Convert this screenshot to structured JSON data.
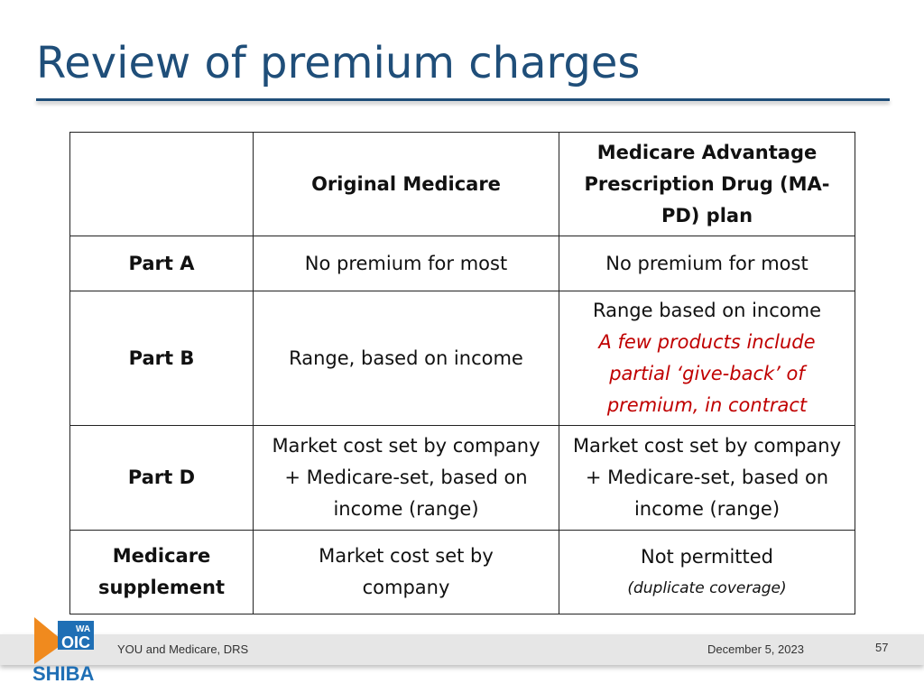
{
  "slide": {
    "title": "Review of premium charges"
  },
  "table": {
    "headers": [
      "",
      "Original Medicare",
      "Medicare Advantage Prescription Drug (MA-PD) plan"
    ],
    "rows": [
      {
        "label": "Part A",
        "original": "No premium for most",
        "mapd": "No premium for most"
      },
      {
        "label": "Part B",
        "original": "Range, based on income",
        "mapd": "Range based on income",
        "mapd_note": "A few products include partial ‘give-back’ of premium, in contract"
      },
      {
        "label": "Part D",
        "original": "Market cost set by company + Medicare-set, based on income (range)",
        "mapd": "Market cost set by company + Medicare-set, based on income (range)"
      },
      {
        "label": "Medicare supplement",
        "original": "Market cost set by company",
        "mapd": "Not permitted",
        "mapd_note": "(duplicate coverage)"
      }
    ]
  },
  "footer": {
    "left": "YOU and Medicare, DRS",
    "date": "December 5, 2023",
    "page": "57"
  },
  "logo": {
    "state": "WA",
    "office": "OIC",
    "program": "SHIBA",
    "colors": {
      "blue": "#1f6fb5",
      "orange": "#f08a1e"
    }
  }
}
